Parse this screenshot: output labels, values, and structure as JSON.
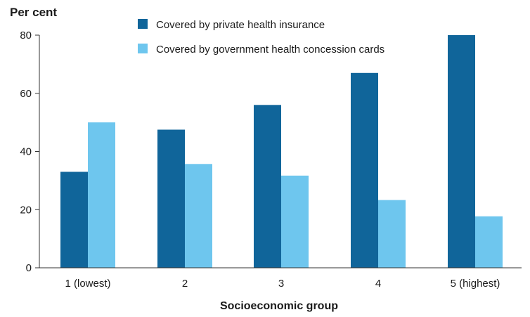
{
  "chart_data": {
    "type": "bar",
    "title": "",
    "ylabel": "Per cent",
    "xlabel": "Socioeconomic group",
    "categories": [
      "1 (lowest)",
      "2",
      "3",
      "4",
      "5 (highest)"
    ],
    "series": [
      {
        "name": "Covered by private health insurance",
        "color": "#10659a",
        "values": [
          33,
          47.5,
          56,
          67,
          80
        ]
      },
      {
        "name": "Covered by government health concession cards",
        "color": "#6ec6ee",
        "values": [
          50,
          35.7,
          31.7,
          23.3,
          17.7
        ]
      }
    ],
    "ylim": [
      0,
      80
    ],
    "yticks": [
      0,
      20,
      40,
      60,
      80
    ],
    "grid": false,
    "legend_position": "top"
  }
}
